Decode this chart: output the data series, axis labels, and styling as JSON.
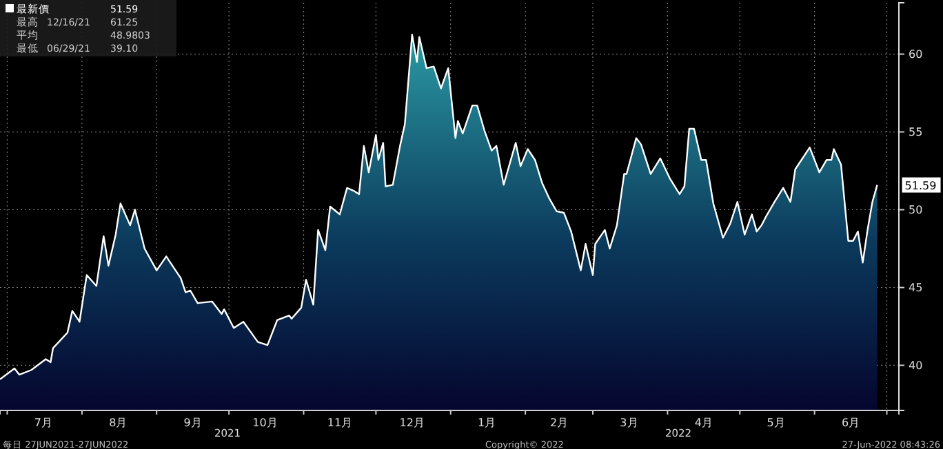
{
  "chart_data": {
    "type": "area",
    "x": [
      "2021-06-28",
      "2021-07-04",
      "2021-07-06",
      "2021-07-11",
      "2021-07-17",
      "2021-07-19",
      "2021-07-20",
      "2021-07-26",
      "2021-07-28",
      "2021-07-31",
      "2021-08-03",
      "2021-08-07",
      "2021-08-10",
      "2021-08-12",
      "2021-08-15",
      "2021-08-17",
      "2021-08-21",
      "2021-08-23",
      "2021-08-27",
      "2021-09-01",
      "2021-09-05",
      "2021-09-11",
      "2021-09-13",
      "2021-09-15",
      "2021-09-18",
      "2021-09-24",
      "2021-09-28",
      "2021-09-29",
      "2021-10-03",
      "2021-10-07",
      "2021-10-13",
      "2021-10-17",
      "2021-10-21",
      "2021-10-26",
      "2021-10-27",
      "2021-10-31",
      "2021-11-02",
      "2021-11-05",
      "2021-11-07",
      "2021-11-10",
      "2021-11-12",
      "2021-11-16",
      "2021-11-19",
      "2021-11-22",
      "2021-11-24",
      "2021-11-26",
      "2021-11-28",
      "2021-12-01",
      "2021-12-02",
      "2021-12-04",
      "2021-12-05",
      "2021-12-08",
      "2021-12-11",
      "2021-12-13",
      "2021-12-16",
      "2021-12-18",
      "2021-12-19",
      "2021-12-22",
      "2021-12-25",
      "2021-12-28",
      "2021-12-31",
      "2022-01-03",
      "2022-01-04",
      "2022-01-06",
      "2022-01-10",
      "2022-01-12",
      "2022-01-15",
      "2022-01-18",
      "2022-01-20",
      "2022-01-23",
      "2022-01-28",
      "2022-01-30",
      "2022-02-02",
      "2022-02-05",
      "2022-02-08",
      "2022-02-11",
      "2022-02-14",
      "2022-02-17",
      "2022-02-20",
      "2022-02-24",
      "2022-02-26",
      "2022-03-01",
      "2022-03-02",
      "2022-03-06",
      "2022-03-08",
      "2022-03-11",
      "2022-03-14",
      "2022-03-15",
      "2022-03-19",
      "2022-03-21",
      "2022-03-25",
      "2022-03-29",
      "2022-04-02",
      "2022-04-06",
      "2022-04-08",
      "2022-04-10",
      "2022-04-12",
      "2022-04-15",
      "2022-04-17",
      "2022-04-20",
      "2022-04-24",
      "2022-04-27",
      "2022-04-30",
      "2022-05-03",
      "2022-05-06",
      "2022-05-08",
      "2022-05-10",
      "2022-05-12",
      "2022-05-15",
      "2022-05-19",
      "2022-05-22",
      "2022-05-24",
      "2022-05-30",
      "2022-06-03",
      "2022-06-06",
      "2022-06-08",
      "2022-06-09",
      "2022-06-12",
      "2022-06-15",
      "2022-06-17",
      "2022-06-19",
      "2022-06-21",
      "2022-06-23",
      "2022-06-25",
      "2022-06-27"
    ],
    "series": [
      {
        "color": "#ffffff",
        "values": [
          39.1,
          39.8,
          39.4,
          39.7,
          40.4,
          40.2,
          41.1,
          42.1,
          43.5,
          42.8,
          45.8,
          45.1,
          48.3,
          46.4,
          48.4,
          50.4,
          49.0,
          50.0,
          47.5,
          46.1,
          47.0,
          45.6,
          44.7,
          44.8,
          44.0,
          44.1,
          43.3,
          43.6,
          42.4,
          42.8,
          41.5,
          41.3,
          42.9,
          43.2,
          43.0,
          43.7,
          45.5,
          43.9,
          48.7,
          47.4,
          50.2,
          49.7,
          51.4,
          51.2,
          51.0,
          54.1,
          52.4,
          54.8,
          53.2,
          54.3,
          51.5,
          51.6,
          54.1,
          55.5,
          61.25,
          59.5,
          61.1,
          59.1,
          59.2,
          57.8,
          59.1,
          54.6,
          55.7,
          54.9,
          56.7,
          56.7,
          55.1,
          53.8,
          54.1,
          51.6,
          54.3,
          52.8,
          53.9,
          53.2,
          51.7,
          50.7,
          49.9,
          49.8,
          48.6,
          46.1,
          47.8,
          45.8,
          47.8,
          48.7,
          47.5,
          49.0,
          52.3,
          52.3,
          54.6,
          54.2,
          52.3,
          53.3,
          52.0,
          51.0,
          51.5,
          55.2,
          55.2,
          53.2,
          53.2,
          50.4,
          48.2,
          49.1,
          50.5,
          48.4,
          49.7,
          48.6,
          49.0,
          49.6,
          50.4,
          51.4,
          50.5,
          52.6,
          54.0,
          52.4,
          53.2,
          53.2,
          53.9,
          52.9,
          48.0,
          48.0,
          48.6,
          46.6,
          48.7,
          50.5,
          51.59
        ]
      }
    ],
    "xlim": [
      "2021-06-28",
      "2022-07-06"
    ],
    "xticks": [
      {
        "value": "2021-07-01",
        "label": null
      },
      {
        "value": "2021-07-16",
        "label": "7月"
      },
      {
        "value": "2021-08-01",
        "label": null
      },
      {
        "value": "2021-08-16",
        "label": "8月"
      },
      {
        "value": "2021-09-01",
        "label": null
      },
      {
        "value": "2021-09-16",
        "label": "9月"
      },
      {
        "value": "2021-10-01",
        "label": null
      },
      {
        "value": "2021-10-16",
        "label": "10月"
      },
      {
        "value": "2021-11-01",
        "label": null
      },
      {
        "value": "2021-11-16",
        "label": "11月"
      },
      {
        "value": "2021-12-01",
        "label": null
      },
      {
        "value": "2021-12-16",
        "label": "12月"
      },
      {
        "value": "2022-01-01",
        "label": null
      },
      {
        "value": "2022-01-16",
        "label": "1月"
      },
      {
        "value": "2022-02-01",
        "label": null
      },
      {
        "value": "2022-02-15",
        "label": "2月"
      },
      {
        "value": "2022-03-01",
        "label": null
      },
      {
        "value": "2022-03-16",
        "label": "3月"
      },
      {
        "value": "2022-04-01",
        "label": null
      },
      {
        "value": "2022-04-16",
        "label": "4月"
      },
      {
        "value": "2022-05-01",
        "label": null
      },
      {
        "value": "2022-05-16",
        "label": "5月"
      },
      {
        "value": "2022-06-01",
        "label": null
      },
      {
        "value": "2022-06-16",
        "label": "6月"
      },
      {
        "value": "2022-07-01",
        "label": null
      }
    ],
    "ylim": [
      37.1,
      63.3
    ],
    "yticks": [
      40,
      45,
      50,
      55,
      60
    ],
    "grid": true,
    "annotations": [
      "最新價 51.59",
      "最高 12/16/21 61.25",
      "平均 48.9803",
      "最低 06/29/21 39.10",
      "2021",
      "2022",
      "每日 27JUN2021-27JUN2022",
      "Copyright© 2022",
      "27-Jun-2022 08:43:26",
      {
        "text": "51.59",
        "x": "2022-06-27",
        "y": 51.59
      }
    ]
  }
}
